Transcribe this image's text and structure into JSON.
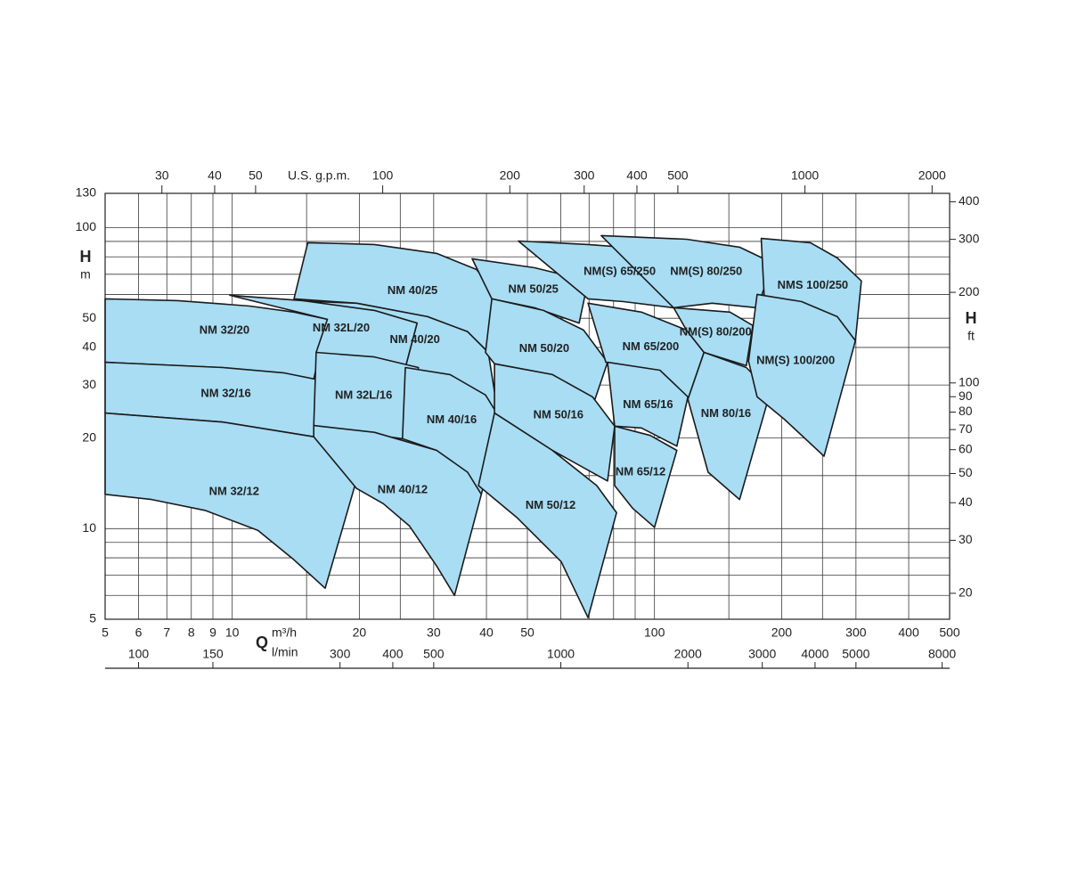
{
  "chart_data": {
    "type": "region",
    "color": "#a8ddf4",
    "edge_color": "#1b1b1b",
    "xlabel": "Q",
    "xunit": "m³/h",
    "x2label": "U.S. g.p.m.",
    "x3label": "l/min",
    "ylabel": "H",
    "yunit": "m",
    "y2label": "H",
    "y2unit": "ft",
    "log_x": true,
    "log_y": true,
    "grid": true,
    "xlim": [
      5,
      500
    ],
    "xticks": [
      5,
      6,
      7,
      8,
      9,
      10,
      20,
      30,
      40,
      50,
      100,
      200,
      300,
      400,
      500
    ],
    "xminor": [
      15,
      25,
      60,
      70,
      80,
      90,
      150,
      250
    ],
    "x2lim": [
      22.01,
      2201
    ],
    "x2ticks": [
      30,
      40,
      50,
      100,
      200,
      300,
      400,
      500,
      1000,
      2000
    ],
    "x3lim": [
      83.33,
      8333
    ],
    "x3ticks": [
      100,
      150,
      300,
      400,
      500,
      1000,
      2000,
      3000,
      4000,
      5000,
      8000
    ],
    "ylim": [
      5,
      130
    ],
    "yticks": [
      5,
      10,
      20,
      30,
      40,
      50,
      100,
      130
    ],
    "yminor": [
      6,
      7,
      8,
      9,
      15,
      60,
      70,
      80,
      90
    ],
    "y2lim": [
      16.4,
      426.5
    ],
    "y2ticks": [
      20,
      30,
      40,
      50,
      60,
      70,
      80,
      90,
      100,
      200,
      300,
      400
    ],
    "series": [
      {
        "name": "NM 32/20",
        "x": [
          5,
          7.44,
          11.0,
          14.0,
          16.8,
          15.6,
          9.49,
          5
        ],
        "y": [
          58.0,
          57.2,
          54.9,
          52.4,
          49.6,
          31.4,
          34.3,
          35.7
        ]
      },
      {
        "name": "NM 32/16",
        "x": [
          5,
          9.49,
          13.3,
          16.8,
          15.6,
          9.49,
          5
        ],
        "y": [
          35.7,
          34.3,
          32.9,
          30.8,
          20.2,
          22.6,
          24.2
        ]
      },
      {
        "name": "NM 32/12",
        "x": [
          5,
          9.49,
          15.6,
          20.2,
          16.6,
          14.0,
          11.5,
          8.62,
          6.44,
          5
        ],
        "y": [
          24.2,
          22.6,
          20.2,
          16.4,
          6.34,
          7.88,
          9.87,
          11.5,
          12.5,
          13.0
        ]
      },
      {
        "name": "NM 40/25",
        "x": [
          15.1,
          21.7,
          30.5,
          37.9,
          42.2,
          40.4,
          36.1,
          29.0,
          19.7,
          14.0
        ],
        "y": [
          89.1,
          87.9,
          82.1,
          72.6,
          60.0,
          38.5,
          45.1,
          50.6,
          56.1,
          58.0
        ]
      },
      {
        "name": "NM 40/20",
        "x": [
          12.1,
          19.7,
          29.0,
          36.1,
          40.4,
          42.8,
          32.0,
          25.7,
          27.4,
          21.7
        ],
        "y": [
          57.6,
          56.1,
          50.6,
          45.1,
          38.5,
          23.1,
          32.5,
          34.3,
          48.2,
          53.1
        ]
      },
      {
        "name": "NM 32L/20",
        "x": [
          9.87,
          14.7,
          21.7,
          27.4,
          25.7,
          19.7,
          15.8,
          16.8
        ],
        "y": [
          59.6,
          57.2,
          53.1,
          48.2,
          34.3,
          36.5,
          38.5,
          49.6
        ]
      },
      {
        "name": "NM 32L/16",
        "x": [
          15.8,
          21.7,
          27.6,
          25.3,
          19.7,
          15.6
        ],
        "y": [
          38.5,
          37.2,
          34.3,
          19.9,
          20.9,
          22.0
        ]
      },
      {
        "name": "NM 40/16",
        "x": [
          25.7,
          32.8,
          39.8,
          43.2,
          38.9,
          30.5,
          25.3
        ],
        "y": [
          34.3,
          32.5,
          27.8,
          23.1,
          13.0,
          18.2,
          19.9
        ]
      },
      {
        "name": "NM 40/12",
        "x": [
          15.6,
          21.7,
          30.5,
          36.1,
          38.9,
          33.6,
          30.5,
          26.3,
          22.8,
          19.7,
          15.6
        ],
        "y": [
          22.0,
          20.9,
          18.2,
          15.4,
          13.0,
          6.0,
          7.51,
          10.2,
          12.1,
          13.6,
          20.2
        ]
      },
      {
        "name": "NM 50/25",
        "x": [
          37.0,
          52.0,
          69.6,
          66.3,
          52.0,
          41.2
        ],
        "y": [
          78.8,
          73.6,
          66.5,
          48.2,
          54.2,
          58.0
        ]
      },
      {
        "name": "NM 50/20",
        "x": [
          41.2,
          54.6,
          67.9,
          77.4,
          72.3,
          57.3,
          41.8,
          39.8
        ],
        "y": [
          58.0,
          53.1,
          45.7,
          35.7,
          26.9,
          32.5,
          35.3,
          38.5
        ]
      },
      {
        "name": "NM 50/16",
        "x": [
          41.8,
          57.3,
          71.3,
          80.5,
          77.4,
          57.3,
          41.8
        ],
        "y": [
          35.3,
          32.5,
          27.4,
          21.9,
          14.4,
          18.2,
          24.2
        ]
      },
      {
        "name": "NM 50/12",
        "x": [
          41.8,
          57.3,
          73.0,
          81.3,
          69.6,
          60.1,
          47.2,
          38.3
        ],
        "y": [
          24.2,
          18.2,
          13.9,
          11.3,
          5.06,
          7.77,
          10.9,
          13.9
        ]
      },
      {
        "name": "NM(S) 65/250",
        "x": [
          47.6,
          69.6,
          103,
          119,
          111,
          84.5,
          69.6
        ],
        "y": [
          90.3,
          87.9,
          84.3,
          78.8,
          54.2,
          56.8,
          58.0
        ]
      },
      {
        "name": "NM 65/200",
        "x": [
          69.6,
          93.1,
          119,
          131,
          120,
          93.1,
          76.7
        ],
        "y": [
          56.1,
          52.4,
          45.7,
          38.5,
          26.9,
          33.6,
          35.7
        ]
      },
      {
        "name": "NM 65/16",
        "x": [
          77.4,
          103,
          120,
          113,
          93.1,
          80.5
        ],
        "y": [
          35.7,
          33.6,
          27.4,
          18.8,
          21.6,
          21.9
        ]
      },
      {
        "name": "NM 65/12",
        "x": [
          80.5,
          97.7,
          113,
          100,
          88.7,
          80.5
        ],
        "y": [
          21.9,
          20.4,
          18.2,
          10.1,
          11.7,
          13.9
        ]
      },
      {
        "name": "NM(S) 80/250",
        "x": [
          74.8,
          119,
          159,
          191,
          175,
          137,
          111
        ],
        "y": [
          94.1,
          91.5,
          86.1,
          76.2,
          54.2,
          56.1,
          54.2
        ]
      },
      {
        "name": "NM(S) 80/200",
        "x": [
          111,
          151,
          171,
          165,
          131,
          119
        ],
        "y": [
          54.2,
          52.4,
          47.3,
          34.8,
          38.5,
          45.7
        ]
      },
      {
        "name": "NM 80/16",
        "x": [
          131,
          165,
          188,
          159,
          134,
          120
        ],
        "y": [
          38.5,
          34.3,
          28.4,
          12.5,
          15.4,
          26.9
        ]
      },
      {
        "name": "NMS 100/250",
        "x": [
          179,
          234,
          271,
          309,
          299,
          258,
          203,
          182
        ],
        "y": [
          92.1,
          89.1,
          79.3,
          66.5,
          42.1,
          48.9,
          56.1,
          58.0
        ]
      },
      {
        "name": "NM(S) 100/200",
        "x": [
          175,
          223,
          271,
          299,
          252,
          203,
          175,
          167
        ],
        "y": [
          60.0,
          56.8,
          50.6,
          42.1,
          17.4,
          23.1,
          27.4,
          36.0
        ]
      }
    ]
  }
}
